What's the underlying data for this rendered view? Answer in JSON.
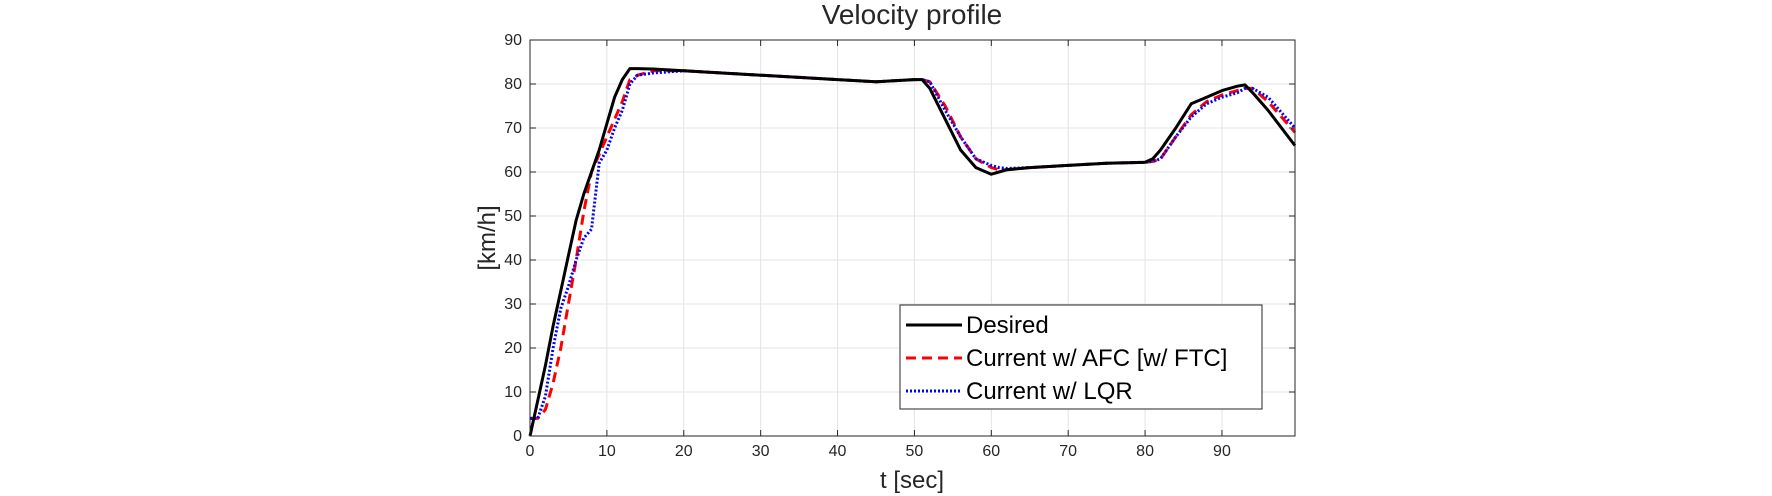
{
  "chart_data": {
    "type": "line",
    "title": "Velocity profile",
    "xlabel": "t [sec]",
    "ylabel": "[km/h]",
    "xlim": [
      0,
      99.5
    ],
    "ylim": [
      0,
      90
    ],
    "xticks": [
      0,
      10,
      20,
      30,
      40,
      50,
      60,
      70,
      80,
      90
    ],
    "yticks": [
      0,
      10,
      20,
      30,
      40,
      50,
      60,
      70,
      80,
      90
    ],
    "grid": true,
    "legend_position": "bottom-right",
    "series": [
      {
        "name": "Desired",
        "color": "#000000",
        "style": "solid",
        "x": [
          0,
          1,
          2,
          3,
          4,
          5,
          6,
          7,
          8,
          9,
          10,
          11,
          12,
          13,
          14,
          16,
          20,
          25,
          30,
          35,
          40,
          45,
          50,
          51,
          52,
          54,
          56,
          58,
          60,
          61,
          62,
          65,
          70,
          75,
          80,
          81,
          82,
          84,
          86,
          88,
          90,
          92,
          93,
          94,
          96,
          99.5
        ],
        "y": [
          0,
          8,
          16,
          25,
          33,
          41,
          49,
          55,
          60,
          65,
          71,
          77,
          81,
          83.5,
          83.5,
          83.4,
          83,
          82.5,
          82,
          81.5,
          81,
          80.5,
          81,
          81,
          79,
          72,
          65,
          61,
          59.5,
          60,
          60.5,
          61,
          61.5,
          62,
          62.2,
          63,
          65,
          70,
          75.5,
          77,
          78.5,
          79.5,
          79.8,
          78,
          74,
          66
        ]
      },
      {
        "name": "Current w/ AFC [w/ FTC]",
        "color": "#ff0000",
        "style": "dashed",
        "x": [
          0,
          1,
          2,
          3,
          4,
          5,
          6,
          7,
          8,
          9,
          10,
          11,
          12,
          13,
          14,
          16,
          20,
          25,
          30,
          35,
          40,
          45,
          50,
          51,
          52,
          54,
          56,
          58,
          60,
          61,
          62,
          65,
          70,
          75,
          80,
          81,
          82,
          84,
          86,
          88,
          90,
          92,
          93,
          94,
          96,
          99.5
        ],
        "y": [
          4,
          4,
          6,
          12,
          20,
          30,
          40,
          51,
          60,
          64,
          68,
          72,
          76,
          81,
          82,
          83,
          83,
          82.5,
          82,
          81.5,
          81,
          80.5,
          81,
          81,
          80.5,
          75,
          68,
          63,
          61,
          60.5,
          60.5,
          61,
          61.5,
          62,
          62.2,
          62.4,
          63,
          68,
          73,
          76,
          77.5,
          78.5,
          79,
          79,
          76,
          69
        ]
      },
      {
        "name": "Current w/ LQR",
        "color": "#0000ff",
        "style": "dotted",
        "x": [
          0,
          1,
          2,
          3,
          4,
          5,
          6,
          7,
          8,
          9,
          10,
          11,
          12,
          13,
          14,
          16,
          20,
          25,
          30,
          35,
          40,
          45,
          50,
          51,
          52,
          54,
          56,
          58,
          60,
          61,
          62,
          65,
          70,
          75,
          80,
          81,
          82,
          84,
          86,
          88,
          90,
          92,
          93,
          94,
          96,
          99.5
        ],
        "y": [
          4,
          4,
          9,
          20,
          29,
          34,
          40,
          45,
          47,
          62,
          65,
          70,
          74,
          80,
          82,
          82.5,
          83,
          82.5,
          82,
          81.5,
          81,
          80.5,
          81,
          81,
          80.5,
          74,
          68,
          63,
          61.5,
          61,
          60.8,
          61,
          61.5,
          62,
          62.2,
          62.4,
          63,
          68,
          72.5,
          75.5,
          77,
          78,
          79,
          79,
          77,
          70
        ]
      }
    ]
  }
}
